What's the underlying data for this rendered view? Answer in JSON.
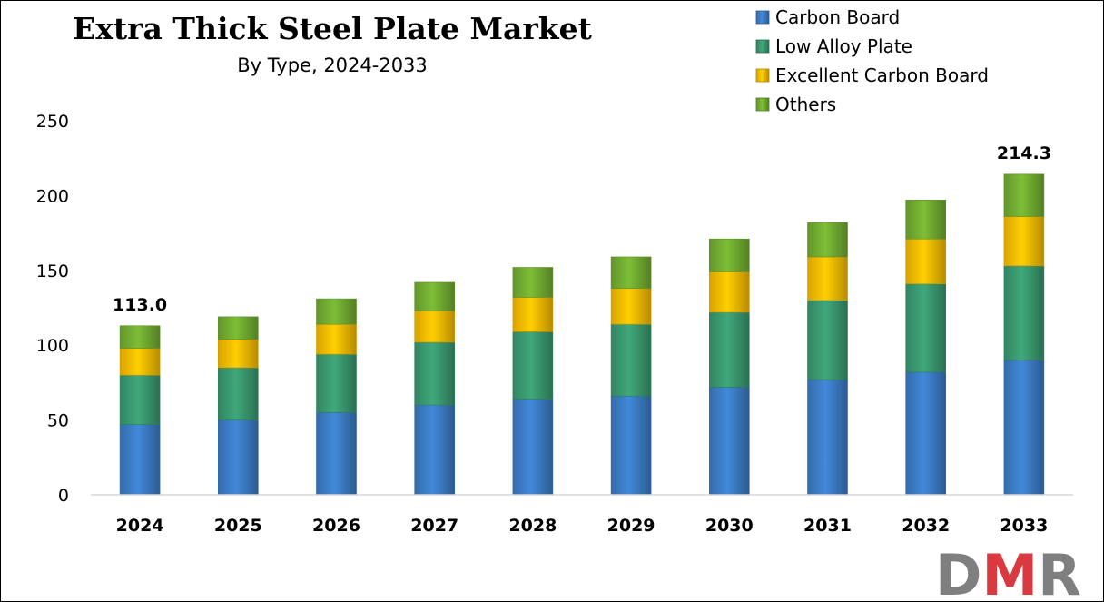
{
  "colors": {
    "Carbon Board": "#3d7fc9",
    "Low Alloy Plate": "#3b9c72",
    "Excellent Carbon Board": "#ffc000",
    "Others": "#74b032",
    "logo_gray": "#7f7f7f",
    "logo_red": "#d9393f"
  },
  "logo": {
    "text": "DMR"
  },
  "chart_data": {
    "type": "bar",
    "stacked": true,
    "title": "Extra Thick Steel Plate Market",
    "subtitle": "By Type, 2024-2033",
    "xlabel": "",
    "ylabel": "",
    "ylim": [
      0,
      250
    ],
    "yticks": [
      0,
      50,
      100,
      150,
      200,
      250
    ],
    "grid": false,
    "legend_position": "top-right",
    "categories": [
      "2024",
      "2025",
      "2026",
      "2027",
      "2028",
      "2029",
      "2030",
      "2031",
      "2032",
      "2033"
    ],
    "series": [
      {
        "name": "Carbon Board",
        "values": [
          47,
          50,
          55,
          60,
          64,
          66,
          72,
          77,
          82,
          90
        ]
      },
      {
        "name": "Low Alloy Plate",
        "values": [
          33,
          35,
          39,
          42,
          45,
          48,
          50,
          53,
          59,
          63
        ]
      },
      {
        "name": "Excellent Carbon Board",
        "values": [
          18,
          19,
          20,
          21,
          23,
          24,
          27,
          29,
          30,
          33
        ]
      },
      {
        "name": "Others",
        "values": [
          15,
          15,
          17,
          19,
          20,
          21,
          22,
          23,
          26,
          28.3
        ]
      }
    ],
    "data_labels": [
      {
        "category": "2024",
        "text": "113.0"
      },
      {
        "category": "2033",
        "text": "214.3"
      }
    ]
  }
}
